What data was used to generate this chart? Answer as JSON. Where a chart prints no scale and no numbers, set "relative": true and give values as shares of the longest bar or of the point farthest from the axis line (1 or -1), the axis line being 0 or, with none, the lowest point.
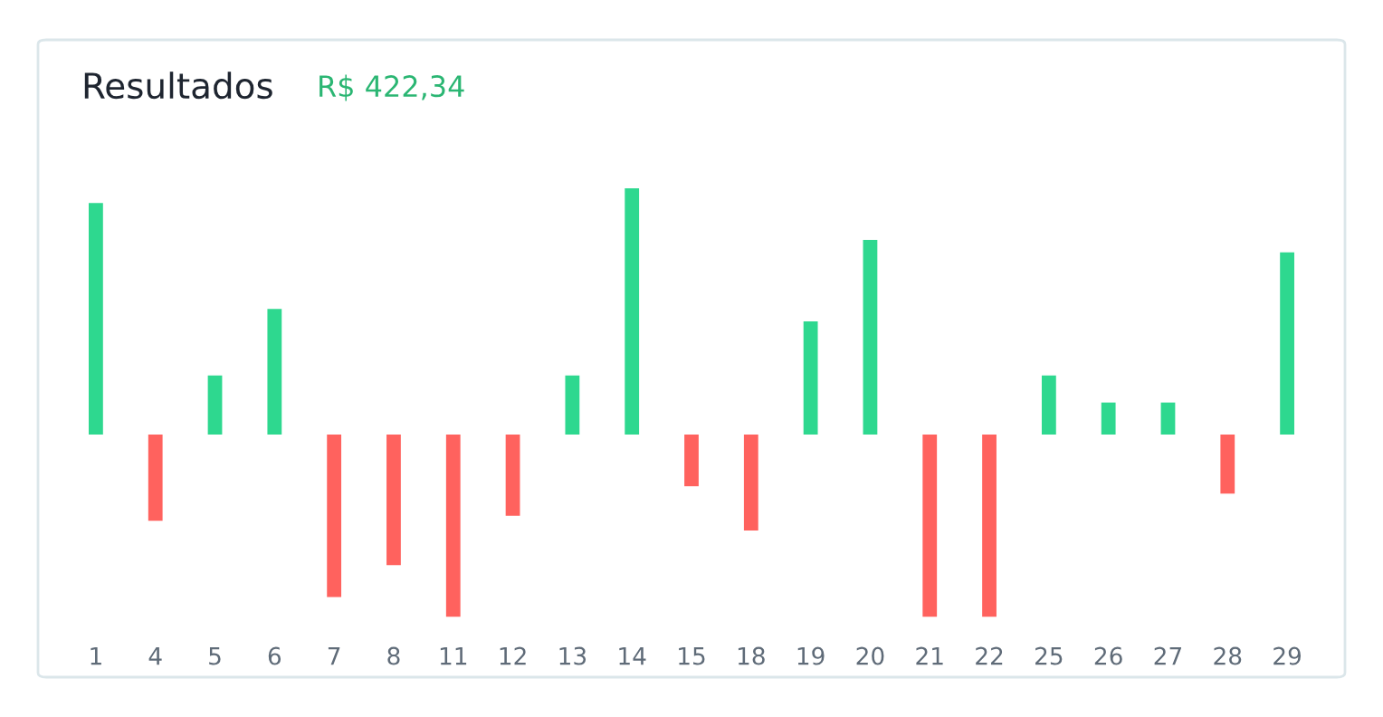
{
  "chart_data": {
    "type": "bar",
    "title": "Resultados",
    "subtitle": "R$ 422,34",
    "relative": true,
    "categories": [
      "1",
      "4",
      "5",
      "6",
      "7",
      "8",
      "11",
      "12",
      "13",
      "14",
      "15",
      "18",
      "19",
      "20",
      "21",
      "22",
      "25",
      "26",
      "27",
      "28",
      "29"
    ],
    "values": [
      0.94,
      -0.35,
      0.24,
      0.51,
      -0.66,
      -0.53,
      -0.74,
      -0.33,
      0.24,
      1,
      -0.21,
      -0.39,
      0.46,
      0.79,
      -0.74,
      -0.74,
      0.24,
      0.13,
      0.13,
      -0.24,
      0.74
    ],
    "colors": [
      "#2ed88f",
      "#ff625e",
      "#2ed88f",
      "#2ed88f",
      "#ff625e",
      "#ff625e",
      "#ff625e",
      "#ff625e",
      "#2ed88f",
      "#2ed88f",
      "#ff625e",
      "#ff625e",
      "#2ed88f",
      "#2ed88f",
      "#ff625e",
      "#ff625e",
      "#2ed88f",
      "#2ed88f",
      "#2ed88f",
      "#ff625e",
      "#2ed88f"
    ]
  }
}
